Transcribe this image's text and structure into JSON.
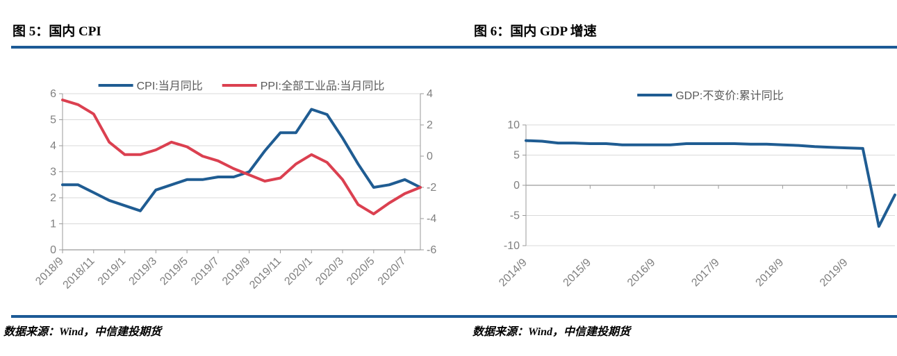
{
  "figures": [
    {
      "title": "图 5：国内 CPI",
      "source": "数据来源：Wind，中信建投期货",
      "chart_data": {
        "type": "line",
        "x": [
          "2018/9",
          "2018/10",
          "2018/11",
          "2018/12",
          "2019/1",
          "2019/2",
          "2019/3",
          "2019/4",
          "2019/5",
          "2019/6",
          "2019/7",
          "2019/8",
          "2019/9",
          "2019/10",
          "2019/11",
          "2019/12",
          "2020/1",
          "2020/2",
          "2020/3",
          "2020/4",
          "2020/5",
          "2020/6",
          "2020/7",
          "2020/8"
        ],
        "label_every": 2,
        "x_axis_at": 0,
        "left_axis": {
          "min": 0,
          "max": 6,
          "ticks": [
            0,
            1,
            2,
            3,
            4,
            5,
            6
          ]
        },
        "right_axis": {
          "min": -6,
          "max": 4,
          "ticks": [
            -6,
            -4,
            -2,
            0,
            2,
            4
          ]
        },
        "grid": "horizontal",
        "legend_position": "top-center",
        "series": [
          {
            "name": "CPI:当月同比",
            "axis": "left",
            "color": "#1F5C92",
            "values": [
              2.5,
              2.5,
              2.2,
              1.9,
              1.7,
              1.5,
              2.3,
              2.5,
              2.7,
              2.7,
              2.8,
              2.8,
              3.0,
              3.8,
              4.5,
              4.5,
              5.4,
              5.2,
              4.3,
              3.3,
              2.4,
              2.5,
              2.7,
              2.4
            ]
          },
          {
            "name": "PPI:全部工业品:当月同比",
            "axis": "right",
            "color": "#DB4050",
            "values": [
              3.6,
              3.3,
              2.7,
              0.9,
              0.1,
              0.1,
              0.4,
              0.9,
              0.6,
              0.0,
              -0.3,
              -0.8,
              -1.2,
              -1.6,
              -1.4,
              -0.5,
              0.1,
              -0.4,
              -1.5,
              -3.1,
              -3.7,
              -3.0,
              -2.4,
              -2.0
            ]
          }
        ]
      }
    },
    {
      "title": "图 6：国内 GDP 增速",
      "source": "数据来源：Wind，中信建投期货",
      "chart_data": {
        "type": "line",
        "x": [
          "2014/9",
          "2014/12",
          "2015/3",
          "2015/6",
          "2015/9",
          "2015/12",
          "2016/3",
          "2016/6",
          "2016/9",
          "2016/12",
          "2017/3",
          "2017/6",
          "2017/9",
          "2017/12",
          "2018/3",
          "2018/6",
          "2018/9",
          "2018/12",
          "2019/3",
          "2019/6",
          "2019/9",
          "2019/12",
          "2020/3",
          "2020/6"
        ],
        "label_every": 4,
        "x_axis_at": 0,
        "left_axis": {
          "min": -10,
          "max": 10,
          "ticks": [
            -10,
            -5,
            0,
            5,
            10
          ]
        },
        "grid": "horizontal",
        "legend_position": "top-center",
        "series": [
          {
            "name": "GDP:不变价:累计同比",
            "axis": "left",
            "color": "#1F5C92",
            "values": [
              7.4,
              7.3,
              7.0,
              7.0,
              6.9,
              6.9,
              6.7,
              6.7,
              6.7,
              6.7,
              6.9,
              6.9,
              6.9,
              6.9,
              6.8,
              6.8,
              6.7,
              6.6,
              6.4,
              6.3,
              6.2,
              6.1,
              -6.8,
              -1.6
            ]
          }
        ]
      }
    }
  ],
  "colors": {
    "rule_blue": "#1C5A96",
    "series_blue": "#1F5C92",
    "series_red": "#DB4050",
    "axis_text": "#7F7F7F",
    "legend_text": "#595959",
    "gridline": "#D9D9D9",
    "axis_line": "#9A9A9A"
  }
}
